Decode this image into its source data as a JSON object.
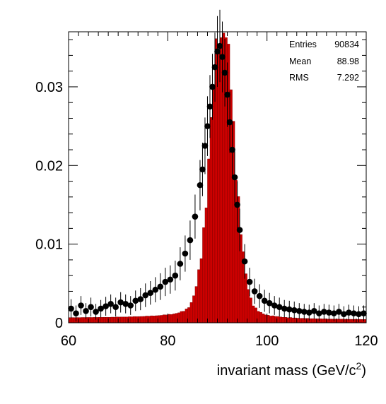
{
  "chart_data": {
    "type": "bar",
    "title": "",
    "xlabel": "invariant mass (GeV/c",
    "xlabel_sup": "2",
    "xlabel_close": ")",
    "ylabel": "",
    "xlim": [
      60,
      120
    ],
    "ylim": [
      0,
      0.037
    ],
    "xticks": [
      {
        "value": 60,
        "label": "60"
      },
      {
        "value": 80,
        "label": "80"
      },
      {
        "value": 100,
        "label": "100"
      },
      {
        "value": 120,
        "label": "120"
      }
    ],
    "yticks": [
      {
        "value": 0,
        "label": "0"
      },
      {
        "value": 0.01,
        "label": "0.01"
      },
      {
        "value": 0.02,
        "label": "0.02"
      },
      {
        "value": 0.03,
        "label": "0.03"
      }
    ],
    "grid": false,
    "colors": {
      "histogram_fill": "#cc0000",
      "markers": "#000000"
    },
    "histogram": {
      "name": "",
      "bin_width": 0.5,
      "shape": {
        "peak": 91.0,
        "amplitude": 0.0355,
        "core_sigma": 2.3,
        "tail_gamma": 3.6,
        "tail_weight": 0.028,
        "low_side_shoulder": 0.0006
      }
    },
    "markers": {
      "name": "",
      "x": [
        60.5,
        61.5,
        62.5,
        63.5,
        64.5,
        65.5,
        66.5,
        67.5,
        68.5,
        69.5,
        70.5,
        71.5,
        72.5,
        73.5,
        74.5,
        75.5,
        76.5,
        77.5,
        78.5,
        79.5,
        80.5,
        81.5,
        82.5,
        83.5,
        84.5,
        85.5,
        86.5,
        87.0,
        87.5,
        88.0,
        88.5,
        89.0,
        89.5,
        90.0,
        90.5,
        91.0,
        91.5,
        92.0,
        92.5,
        93.0,
        93.5,
        94.0,
        94.5,
        95.5,
        96.5,
        97.5,
        98.5,
        99.5,
        100.5,
        101.5,
        102.5,
        103.5,
        104.5,
        105.5,
        106.5,
        107.5,
        108.5,
        109.5,
        110.5,
        111.5,
        112.5,
        113.5,
        114.5,
        115.5,
        116.5,
        117.5,
        118.5,
        119.5
      ],
      "y": [
        0.0018,
        0.0012,
        0.0022,
        0.0015,
        0.002,
        0.0014,
        0.0018,
        0.0021,
        0.0024,
        0.002,
        0.0026,
        0.0024,
        0.0022,
        0.0028,
        0.003,
        0.0035,
        0.0038,
        0.0042,
        0.0046,
        0.0052,
        0.0055,
        0.006,
        0.0075,
        0.0088,
        0.0105,
        0.0135,
        0.0175,
        0.0195,
        0.0225,
        0.025,
        0.0275,
        0.03,
        0.0325,
        0.0345,
        0.0352,
        0.0338,
        0.0318,
        0.029,
        0.0255,
        0.022,
        0.0185,
        0.015,
        0.0118,
        0.0078,
        0.0052,
        0.004,
        0.0034,
        0.0028,
        0.0025,
        0.0022,
        0.002,
        0.0018,
        0.0017,
        0.0016,
        0.0015,
        0.0014,
        0.0013,
        0.0015,
        0.0012,
        0.0014,
        0.0013,
        0.0012,
        0.0014,
        0.0011,
        0.0013,
        0.0012,
        0.0011,
        0.0012
      ],
      "err": [
        0.0012,
        0.001,
        0.0012,
        0.001,
        0.0012,
        0.001,
        0.0011,
        0.0012,
        0.0012,
        0.0012,
        0.0013,
        0.0012,
        0.0012,
        0.0013,
        0.0014,
        0.0015,
        0.0015,
        0.0016,
        0.0017,
        0.0018,
        0.0018,
        0.0019,
        0.0021,
        0.0023,
        0.0025,
        0.0028,
        0.0032,
        0.0034,
        0.0036,
        0.0038,
        0.004,
        0.0042,
        0.0044,
        0.0045,
        0.0046,
        0.0045,
        0.0043,
        0.0041,
        0.0039,
        0.0036,
        0.0033,
        0.003,
        0.0027,
        0.0022,
        0.0018,
        0.0016,
        0.0015,
        0.0014,
        0.0013,
        0.0012,
        0.0012,
        0.0011,
        0.0011,
        0.0011,
        0.001,
        0.001,
        0.001,
        0.001,
        0.001,
        0.001,
        0.001,
        0.001,
        0.001,
        0.001,
        0.001,
        0.001,
        0.001,
        0.001
      ]
    }
  },
  "stats": [
    {
      "label": "Entries",
      "value": "90834"
    },
    {
      "label": "Mean",
      "value": "88.98"
    },
    {
      "label": "RMS",
      "value": "7.292"
    }
  ]
}
